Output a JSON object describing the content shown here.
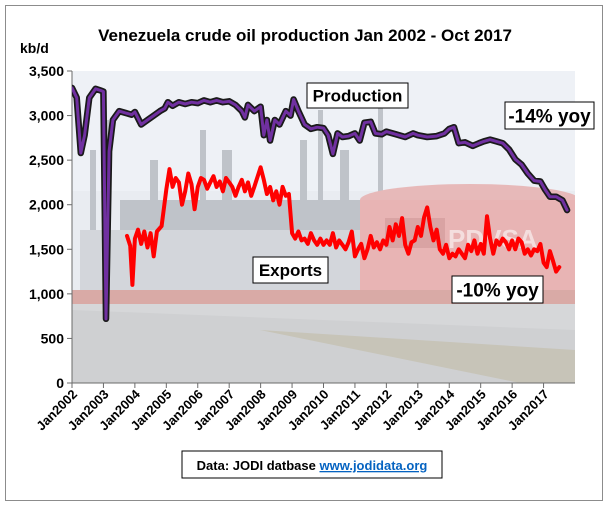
{
  "chart_data": {
    "type": "line",
    "title": "Venezuela crude oil production Jan 2002 - Oct 2017",
    "ylabel": "kb/d",
    "ylim": [
      0,
      3500
    ],
    "yticks": [
      0,
      500,
      1000,
      1500,
      2000,
      2500,
      3000,
      3500
    ],
    "ytick_labels": [
      "0",
      "500",
      "1,000",
      "1,500",
      "2,000",
      "2,500",
      "3,000",
      "3,500"
    ],
    "xticks": [
      2002,
      2003,
      2004,
      2005,
      2006,
      2007,
      2008,
      2009,
      2010,
      2011,
      2012,
      2013,
      2014,
      2015,
      2016,
      2017
    ],
    "xtick_labels": [
      "Jan2002",
      "Jan2003",
      "Jan2004",
      "Jan2005",
      "Jan2006",
      "Jan2007",
      "Jan2008",
      "Jan2009",
      "Jan2010",
      "Jan2011",
      "Jan2012",
      "Jan2013",
      "Jan2014",
      "Jan2015",
      "Jan2016",
      "Jan2017"
    ],
    "grid": false,
    "series": [
      {
        "name": "Production",
        "color": "#7030a0",
        "points": [
          [
            2002.0,
            3310
          ],
          [
            2002.15,
            3200
          ],
          [
            2002.28,
            2580
          ],
          [
            2002.4,
            2780
          ],
          [
            2002.55,
            3200
          ],
          [
            2002.75,
            3300
          ],
          [
            2002.92,
            3280
          ],
          [
            2003.0,
            3270
          ],
          [
            2003.08,
            720
          ],
          [
            2003.18,
            2600
          ],
          [
            2003.3,
            2950
          ],
          [
            2003.5,
            3050
          ],
          [
            2003.7,
            3030
          ],
          [
            2003.9,
            3010
          ],
          [
            2004.0,
            3040
          ],
          [
            2004.2,
            2900
          ],
          [
            2004.4,
            2950
          ],
          [
            2004.6,
            3000
          ],
          [
            2004.8,
            3050
          ],
          [
            2004.95,
            3080
          ],
          [
            2005.05,
            3150
          ],
          [
            2005.2,
            3110
          ],
          [
            2005.4,
            3150
          ],
          [
            2005.6,
            3130
          ],
          [
            2005.8,
            3150
          ],
          [
            2006.0,
            3140
          ],
          [
            2006.2,
            3170
          ],
          [
            2006.4,
            3150
          ],
          [
            2006.6,
            3170
          ],
          [
            2006.8,
            3150
          ],
          [
            2007.0,
            3160
          ],
          [
            2007.2,
            3120
          ],
          [
            2007.4,
            3050
          ],
          [
            2007.5,
            2980
          ],
          [
            2007.6,
            3120
          ],
          [
            2007.8,
            3050
          ],
          [
            2008.0,
            3100
          ],
          [
            2008.1,
            2780
          ],
          [
            2008.2,
            2950
          ],
          [
            2008.3,
            2720
          ],
          [
            2008.45,
            2950
          ],
          [
            2008.6,
            2900
          ],
          [
            2008.8,
            3050
          ],
          [
            2008.95,
            3000
          ],
          [
            2009.05,
            3180
          ],
          [
            2009.2,
            3050
          ],
          [
            2009.4,
            2900
          ],
          [
            2009.6,
            2850
          ],
          [
            2009.8,
            2870
          ],
          [
            2010.0,
            2860
          ],
          [
            2010.15,
            2780
          ],
          [
            2010.3,
            2570
          ],
          [
            2010.45,
            2800
          ],
          [
            2010.6,
            2760
          ],
          [
            2010.8,
            2770
          ],
          [
            2011.0,
            2800
          ],
          [
            2011.15,
            2720
          ],
          [
            2011.3,
            2920
          ],
          [
            2011.5,
            2930
          ],
          [
            2011.65,
            2800
          ],
          [
            2011.85,
            2790
          ],
          [
            2012.0,
            2820
          ],
          [
            2012.3,
            2790
          ],
          [
            2012.6,
            2760
          ],
          [
            2012.85,
            2800
          ],
          [
            2013.0,
            2780
          ],
          [
            2013.3,
            2760
          ],
          [
            2013.6,
            2770
          ],
          [
            2013.85,
            2800
          ],
          [
            2014.0,
            2850
          ],
          [
            2014.15,
            2870
          ],
          [
            2014.3,
            2690
          ],
          [
            2014.5,
            2700
          ],
          [
            2014.75,
            2660
          ],
          [
            2014.95,
            2690
          ],
          [
            2015.1,
            2710
          ],
          [
            2015.3,
            2730
          ],
          [
            2015.5,
            2710
          ],
          [
            2015.7,
            2690
          ],
          [
            2015.9,
            2620
          ],
          [
            2016.1,
            2510
          ],
          [
            2016.3,
            2450
          ],
          [
            2016.5,
            2350
          ],
          [
            2016.7,
            2270
          ],
          [
            2016.9,
            2260
          ],
          [
            2017.05,
            2170
          ],
          [
            2017.2,
            2090
          ],
          [
            2017.4,
            2090
          ],
          [
            2017.6,
            2050
          ],
          [
            2017.75,
            1940
          ]
        ]
      },
      {
        "name": "Exports",
        "color": "#ff0000",
        "points": [
          [
            2003.75,
            1650
          ],
          [
            2003.85,
            1540
          ],
          [
            2003.92,
            1100
          ],
          [
            2004.0,
            1620
          ],
          [
            2004.1,
            1720
          ],
          [
            2004.2,
            1560
          ],
          [
            2004.3,
            1700
          ],
          [
            2004.4,
            1520
          ],
          [
            2004.5,
            1680
          ],
          [
            2004.6,
            1420
          ],
          [
            2004.7,
            1700
          ],
          [
            2004.85,
            1760
          ],
          [
            2005.0,
            2170
          ],
          [
            2005.1,
            2400
          ],
          [
            2005.2,
            2200
          ],
          [
            2005.3,
            2300
          ],
          [
            2005.4,
            2250
          ],
          [
            2005.5,
            2000
          ],
          [
            2005.6,
            2150
          ],
          [
            2005.7,
            2350
          ],
          [
            2005.8,
            2230
          ],
          [
            2005.9,
            1950
          ],
          [
            2006.0,
            2200
          ],
          [
            2006.1,
            2300
          ],
          [
            2006.2,
            2280
          ],
          [
            2006.3,
            2180
          ],
          [
            2006.4,
            2250
          ],
          [
            2006.5,
            2320
          ],
          [
            2006.6,
            2200
          ],
          [
            2006.7,
            2260
          ],
          [
            2006.8,
            2150
          ],
          [
            2006.9,
            2300
          ],
          [
            2007.0,
            2250
          ],
          [
            2007.1,
            2200
          ],
          [
            2007.2,
            2100
          ],
          [
            2007.3,
            2200
          ],
          [
            2007.4,
            2280
          ],
          [
            2007.5,
            2150
          ],
          [
            2007.6,
            2250
          ],
          [
            2007.7,
            2100
          ],
          [
            2007.8,
            2200
          ],
          [
            2008.0,
            2420
          ],
          [
            2008.1,
            2280
          ],
          [
            2008.2,
            2120
          ],
          [
            2008.3,
            2200
          ],
          [
            2008.4,
            2050
          ],
          [
            2008.5,
            2150
          ],
          [
            2008.6,
            2000
          ],
          [
            2008.7,
            2200
          ],
          [
            2008.8,
            2100
          ],
          [
            2008.9,
            2120
          ],
          [
            2009.0,
            1680
          ],
          [
            2009.1,
            1620
          ],
          [
            2009.2,
            1700
          ],
          [
            2009.3,
            1600
          ],
          [
            2009.4,
            1620
          ],
          [
            2009.5,
            1560
          ],
          [
            2009.6,
            1680
          ],
          [
            2009.7,
            1600
          ],
          [
            2009.8,
            1550
          ],
          [
            2009.9,
            1620
          ],
          [
            2010.0,
            1550
          ],
          [
            2010.1,
            1600
          ],
          [
            2010.2,
            1550
          ],
          [
            2010.3,
            1680
          ],
          [
            2010.4,
            1520
          ],
          [
            2010.5,
            1600
          ],
          [
            2010.6,
            1550
          ],
          [
            2010.7,
            1500
          ],
          [
            2010.8,
            1580
          ],
          [
            2010.9,
            1700
          ],
          [
            2011.0,
            1420
          ],
          [
            2011.1,
            1500
          ],
          [
            2011.2,
            1560
          ],
          [
            2011.3,
            1400
          ],
          [
            2011.4,
            1500
          ],
          [
            2011.5,
            1650
          ],
          [
            2011.6,
            1520
          ],
          [
            2011.7,
            1580
          ],
          [
            2011.8,
            1500
          ],
          [
            2011.9,
            1600
          ],
          [
            2012.0,
            1550
          ],
          [
            2012.1,
            1750
          ],
          [
            2012.2,
            1600
          ],
          [
            2012.3,
            1780
          ],
          [
            2012.4,
            1650
          ],
          [
            2012.5,
            1850
          ],
          [
            2012.6,
            1550
          ],
          [
            2012.7,
            1450
          ],
          [
            2012.8,
            1580
          ],
          [
            2012.9,
            1600
          ],
          [
            2013.0,
            1750
          ],
          [
            2013.1,
            1650
          ],
          [
            2013.2,
            1860
          ],
          [
            2013.3,
            1970
          ],
          [
            2013.4,
            1750
          ],
          [
            2013.5,
            1600
          ],
          [
            2013.6,
            1720
          ],
          [
            2013.7,
            1500
          ],
          [
            2013.8,
            1450
          ],
          [
            2013.9,
            1550
          ],
          [
            2014.0,
            1400
          ],
          [
            2014.1,
            1450
          ],
          [
            2014.2,
            1420
          ],
          [
            2014.3,
            1500
          ],
          [
            2014.4,
            1450
          ],
          [
            2014.5,
            1400
          ],
          [
            2014.6,
            1550
          ],
          [
            2014.7,
            1480
          ],
          [
            2014.8,
            1600
          ],
          [
            2014.9,
            1450
          ],
          [
            2015.0,
            1560
          ],
          [
            2015.1,
            1450
          ],
          [
            2015.2,
            1870
          ],
          [
            2015.3,
            1620
          ],
          [
            2015.4,
            1450
          ],
          [
            2015.5,
            1600
          ],
          [
            2015.6,
            1550
          ],
          [
            2015.7,
            1620
          ],
          [
            2015.8,
            1580
          ],
          [
            2015.9,
            1500
          ],
          [
            2016.0,
            1600
          ],
          [
            2016.1,
            1500
          ],
          [
            2016.2,
            1620
          ],
          [
            2016.3,
            1580
          ],
          [
            2016.4,
            1450
          ],
          [
            2016.5,
            1500
          ],
          [
            2016.6,
            1430
          ],
          [
            2016.7,
            1500
          ],
          [
            2016.8,
            1480
          ],
          [
            2016.9,
            1560
          ],
          [
            2017.0,
            1350
          ],
          [
            2017.1,
            1300
          ],
          [
            2017.2,
            1480
          ],
          [
            2017.3,
            1370
          ],
          [
            2017.4,
            1250
          ],
          [
            2017.5,
            1300
          ]
        ]
      }
    ],
    "annotations": {
      "production_label": "Production",
      "exports_label": "Exports",
      "production_yoy": "-14% yoy",
      "exports_yoy": "-10% yoy"
    },
    "source_prefix": "Data: JODI datbase",
    "source_link": "www.jodidata.org",
    "colors": {
      "production": "#7030a0",
      "production_shadow": "#1a1a1a",
      "exports": "#ff0000",
      "link": "#0563c1"
    }
  }
}
